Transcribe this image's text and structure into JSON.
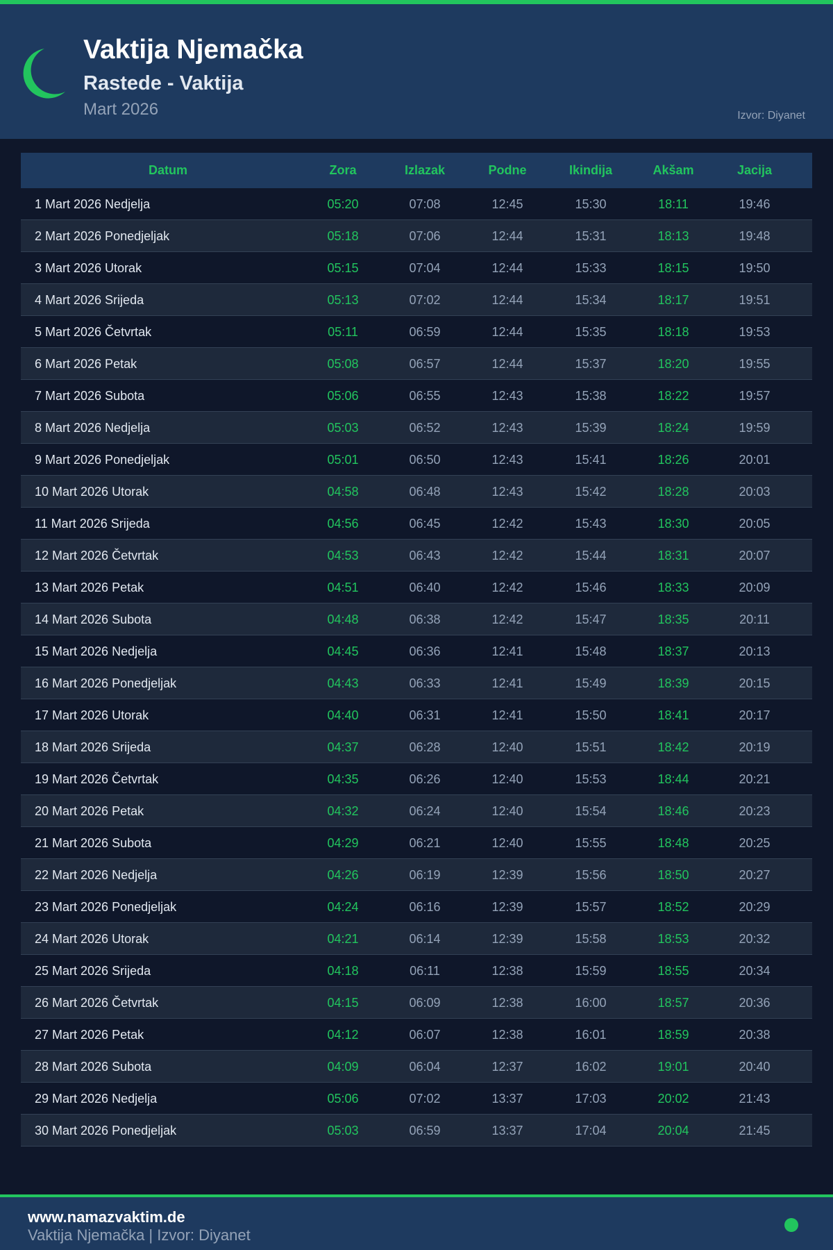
{
  "header": {
    "title": "Vaktija Njemačka",
    "subtitle": "Rastede - Vaktija",
    "month": "Mart 2026",
    "source": "Izvor: Diyanet",
    "icon": "crescent-moon-icon"
  },
  "colors": {
    "accent": "#22c55e",
    "header_bg": "#1e3a5f",
    "page_bg": "#0f172a",
    "row_alt": "#1e293b"
  },
  "table": {
    "columns": [
      "Datum",
      "Zora",
      "Izlazak",
      "Podne",
      "Ikindija",
      "Akšam",
      "Jacija"
    ],
    "rows": [
      [
        "1 Mart 2026 Nedjelja",
        "05:20",
        "07:08",
        "12:45",
        "15:30",
        "18:11",
        "19:46"
      ],
      [
        "2 Mart 2026 Ponedjeljak",
        "05:18",
        "07:06",
        "12:44",
        "15:31",
        "18:13",
        "19:48"
      ],
      [
        "3 Mart 2026 Utorak",
        "05:15",
        "07:04",
        "12:44",
        "15:33",
        "18:15",
        "19:50"
      ],
      [
        "4 Mart 2026 Srijeda",
        "05:13",
        "07:02",
        "12:44",
        "15:34",
        "18:17",
        "19:51"
      ],
      [
        "5 Mart 2026 Četvrtak",
        "05:11",
        "06:59",
        "12:44",
        "15:35",
        "18:18",
        "19:53"
      ],
      [
        "6 Mart 2026 Petak",
        "05:08",
        "06:57",
        "12:44",
        "15:37",
        "18:20",
        "19:55"
      ],
      [
        "7 Mart 2026 Subota",
        "05:06",
        "06:55",
        "12:43",
        "15:38",
        "18:22",
        "19:57"
      ],
      [
        "8 Mart 2026 Nedjelja",
        "05:03",
        "06:52",
        "12:43",
        "15:39",
        "18:24",
        "19:59"
      ],
      [
        "9 Mart 2026 Ponedjeljak",
        "05:01",
        "06:50",
        "12:43",
        "15:41",
        "18:26",
        "20:01"
      ],
      [
        "10 Mart 2026 Utorak",
        "04:58",
        "06:48",
        "12:43",
        "15:42",
        "18:28",
        "20:03"
      ],
      [
        "11 Mart 2026 Srijeda",
        "04:56",
        "06:45",
        "12:42",
        "15:43",
        "18:30",
        "20:05"
      ],
      [
        "12 Mart 2026 Četvrtak",
        "04:53",
        "06:43",
        "12:42",
        "15:44",
        "18:31",
        "20:07"
      ],
      [
        "13 Mart 2026 Petak",
        "04:51",
        "06:40",
        "12:42",
        "15:46",
        "18:33",
        "20:09"
      ],
      [
        "14 Mart 2026 Subota",
        "04:48",
        "06:38",
        "12:42",
        "15:47",
        "18:35",
        "20:11"
      ],
      [
        "15 Mart 2026 Nedjelja",
        "04:45",
        "06:36",
        "12:41",
        "15:48",
        "18:37",
        "20:13"
      ],
      [
        "16 Mart 2026 Ponedjeljak",
        "04:43",
        "06:33",
        "12:41",
        "15:49",
        "18:39",
        "20:15"
      ],
      [
        "17 Mart 2026 Utorak",
        "04:40",
        "06:31",
        "12:41",
        "15:50",
        "18:41",
        "20:17"
      ],
      [
        "18 Mart 2026 Srijeda",
        "04:37",
        "06:28",
        "12:40",
        "15:51",
        "18:42",
        "20:19"
      ],
      [
        "19 Mart 2026 Četvrtak",
        "04:35",
        "06:26",
        "12:40",
        "15:53",
        "18:44",
        "20:21"
      ],
      [
        "20 Mart 2026 Petak",
        "04:32",
        "06:24",
        "12:40",
        "15:54",
        "18:46",
        "20:23"
      ],
      [
        "21 Mart 2026 Subota",
        "04:29",
        "06:21",
        "12:40",
        "15:55",
        "18:48",
        "20:25"
      ],
      [
        "22 Mart 2026 Nedjelja",
        "04:26",
        "06:19",
        "12:39",
        "15:56",
        "18:50",
        "20:27"
      ],
      [
        "23 Mart 2026 Ponedjeljak",
        "04:24",
        "06:16",
        "12:39",
        "15:57",
        "18:52",
        "20:29"
      ],
      [
        "24 Mart 2026 Utorak",
        "04:21",
        "06:14",
        "12:39",
        "15:58",
        "18:53",
        "20:32"
      ],
      [
        "25 Mart 2026 Srijeda",
        "04:18",
        "06:11",
        "12:38",
        "15:59",
        "18:55",
        "20:34"
      ],
      [
        "26 Mart 2026 Četvrtak",
        "04:15",
        "06:09",
        "12:38",
        "16:00",
        "18:57",
        "20:36"
      ],
      [
        "27 Mart 2026 Petak",
        "04:12",
        "06:07",
        "12:38",
        "16:01",
        "18:59",
        "20:38"
      ],
      [
        "28 Mart 2026 Subota",
        "04:09",
        "06:04",
        "12:37",
        "16:02",
        "19:01",
        "20:40"
      ],
      [
        "29 Mart 2026 Nedjelja",
        "05:06",
        "07:02",
        "13:37",
        "17:03",
        "20:02",
        "21:43"
      ],
      [
        "30 Mart 2026 Ponedjeljak",
        "05:03",
        "06:59",
        "13:37",
        "17:04",
        "20:04",
        "21:45"
      ]
    ]
  },
  "footer": {
    "site": "www.namazvaktim.de",
    "subtitle": "Vaktija Njemačka | Izvor: Diyanet"
  }
}
